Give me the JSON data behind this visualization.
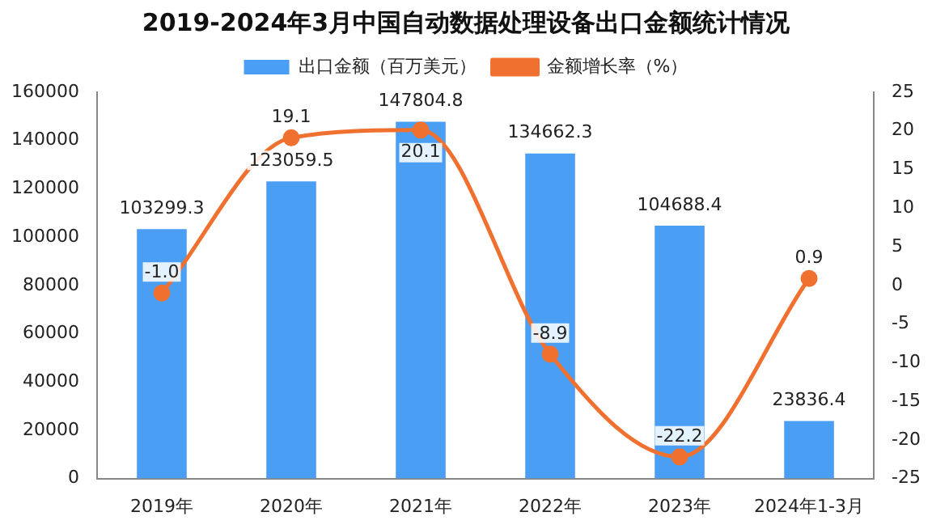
{
  "chart_data": {
    "type": "bar",
    "title": "2019-2024年3月中国自动数据处理设备出口金额统计情况",
    "categories": [
      "2019年",
      "2020年",
      "2021年",
      "2022年",
      "2023年",
      "2024年1-3月"
    ],
    "series": [
      {
        "name": "出口金额（百万美元）",
        "color": "#4a9ff5",
        "values": [
          103299.3,
          123059.5,
          147804.8,
          134662.3,
          104688.4,
          23836.4
        ]
      },
      {
        "name": "金额增长率（%）",
        "type": "line",
        "axis": "y2",
        "color": "#f07030",
        "values": [
          -1.0,
          19.1,
          20.1,
          -8.9,
          -22.2,
          0.9
        ],
        "value_labels": [
          "-1.0",
          "19.1",
          "20.1",
          "-8.9",
          "-22.2",
          "0.9"
        ]
      }
    ],
    "ylim": [
      0,
      160000
    ],
    "yticks": [
      0,
      20000,
      40000,
      60000,
      80000,
      100000,
      120000,
      140000,
      160000
    ],
    "y2lim": [
      -25,
      25
    ],
    "y2ticks": [
      -25,
      -20,
      -15,
      -10,
      -5,
      0,
      5,
      10,
      15,
      20,
      25
    ],
    "data_labels": true,
    "legend": "top",
    "grid": false,
    "marker": "circle",
    "line_style": "solid"
  }
}
